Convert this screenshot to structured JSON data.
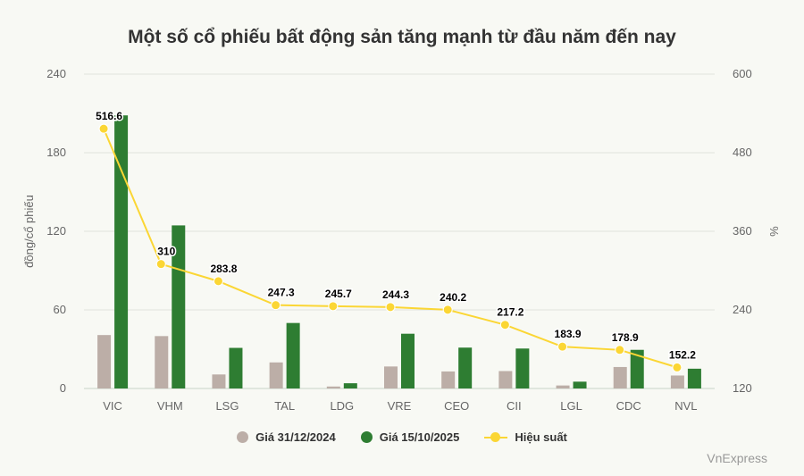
{
  "chart_data": {
    "type": "bar",
    "title": "Một số cổ phiếu bất động sản tăng mạnh từ đầu năm đến nay",
    "categories": [
      "VIC",
      "VHM",
      "LSG",
      "TAL",
      "LDG",
      "VRE",
      "CEO",
      "CII",
      "LGL",
      "CDC",
      "NVL"
    ],
    "ylabel": "đồng/cổ phiếu",
    "y2label": "%",
    "ylim": [
      0,
      240
    ],
    "y2lim": [
      120,
      600
    ],
    "yticks": [
      "0",
      "60",
      "120",
      "180",
      "240"
    ],
    "y2ticks": [
      "120",
      "240",
      "360",
      "480",
      "600"
    ],
    "grid": true,
    "legend_position": "bottom",
    "series": [
      {
        "name": "Giá 31/12/2024",
        "type": "bar",
        "axis": "left",
        "color": "#bcaea7",
        "values": [
          40.8,
          40.0,
          10.7,
          19.9,
          1.5,
          16.8,
          13.0,
          13.3,
          2.3,
          16.4,
          9.9
        ]
      },
      {
        "name": "Giá 15/10/2025",
        "type": "bar",
        "axis": "left",
        "color": "#2e7d32",
        "values": [
          208.5,
          124.5,
          31.0,
          50.0,
          4.0,
          41.8,
          31.2,
          30.5,
          5.2,
          29.5,
          15.1
        ]
      },
      {
        "name": "Hiệu suất",
        "type": "line",
        "axis": "right",
        "color": "#fbd634",
        "values": [
          516.6,
          310,
          283.8,
          247.3,
          245.7,
          244.3,
          240.2,
          217.2,
          183.9,
          178.9,
          152.2
        ],
        "labels": [
          "516.6",
          "310",
          "283.8",
          "247.3",
          "245.7",
          "244.3",
          "240.2",
          "217.2",
          "183.9",
          "178.9",
          "152.2"
        ]
      }
    ]
  },
  "credit": "VnExpress"
}
